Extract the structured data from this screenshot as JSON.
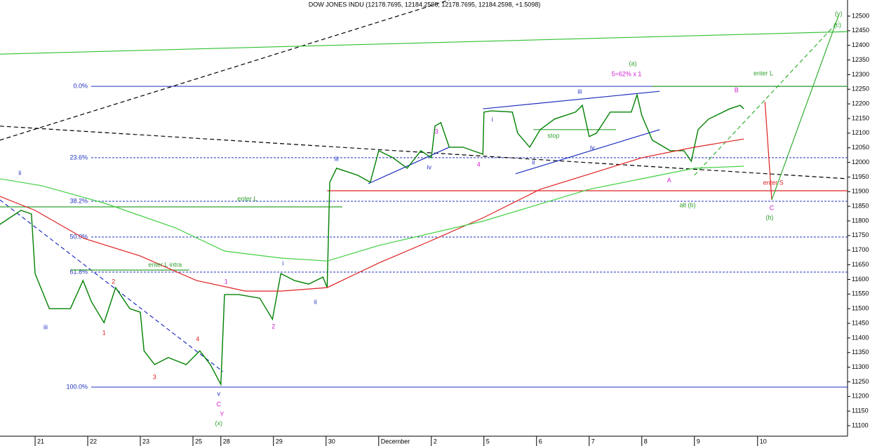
{
  "chart_data": {
    "type": "line",
    "title": "DOW JONES INDU (12178.7695, 12184.2598, 12178.7695, 12184.2598, +1.5098)",
    "xlim": [
      -0.667,
      15.44
    ],
    "ylim": [
      11069,
      12555
    ],
    "xticks": [
      {
        "value": 0,
        "label": "21"
      },
      {
        "value": 1,
        "label": "22"
      },
      {
        "value": 2,
        "label": "23"
      },
      {
        "value": 3,
        "label": "25"
      },
      {
        "value": 3.53,
        "label": "28"
      },
      {
        "value": 4.53,
        "label": "29"
      },
      {
        "value": 5.53,
        "label": "30"
      },
      {
        "value": 6.53,
        "label": "December"
      },
      {
        "value": 7.53,
        "label": "2"
      },
      {
        "value": 8.53,
        "label": "5"
      },
      {
        "value": 9.53,
        "label": "6"
      },
      {
        "value": 10.53,
        "label": "7"
      },
      {
        "value": 11.53,
        "label": "8"
      },
      {
        "value": 12.53,
        "label": "9"
      },
      {
        "value": 13.73,
        "label": "10"
      }
    ],
    "yticks": [
      11100,
      11150,
      11200,
      11250,
      11300,
      11350,
      11400,
      11450,
      11500,
      11550,
      11600,
      11650,
      11700,
      11750,
      11800,
      11850,
      11900,
      11950,
      12000,
      12050,
      12100,
      12150,
      12200,
      12250,
      12300,
      12350,
      12400,
      12450,
      12500
    ],
    "series": [
      {
        "color": "#008000",
        "x": [
          -0.67,
          -0.27,
          -0.07,
          0,
          0.27,
          0.67,
          0.91,
          1.07,
          1.31,
          1.53,
          1.8,
          2,
          2.07,
          2.27,
          2.53,
          2.87,
          3.13,
          3.33,
          3.53,
          3.6,
          3.87,
          4.27,
          4.51,
          4.67,
          4.93,
          5.2,
          5.47,
          5.55,
          5.6,
          5.73,
          6.13,
          6.37,
          6.53,
          6.8,
          7.07,
          7.33,
          7.53,
          7.6,
          7.71,
          7.87,
          8.13,
          8.51,
          8.53,
          8.67,
          9.07,
          9.17,
          9.4,
          9.6,
          9.87,
          10.27,
          10.4,
          10.53,
          10.67,
          10.93,
          11.33,
          11.44,
          11.53,
          11.73,
          12.07,
          12.33,
          12.47,
          12.6,
          12.8,
          13.2,
          13.4,
          13.47
        ],
        "values": [
          11788,
          11836,
          11824,
          11620,
          11500,
          11500,
          11596,
          11524,
          11452,
          11572,
          11500,
          11488,
          11356,
          11309,
          11333,
          11309,
          11356,
          11309,
          11241,
          11548,
          11548,
          11536,
          11464,
          11620,
          11596,
          11584,
          11608,
          11572,
          11932,
          11980,
          11956,
          11932,
          12040,
          12016,
          11980,
          12040,
          12016,
          12124,
          12136,
          12052,
          12052,
          12028,
          12172,
          12176,
          12172,
          12100,
          12052,
          12112,
          12148,
          12172,
          12195,
          12088,
          12100,
          12172,
          12172,
          12231,
          12160,
          12076,
          12040,
          12040,
          12004,
          12112,
          12148,
          12183,
          12195,
          12183
        ]
      },
      {
        "color": "#e02020",
        "x": [
          -0.67,
          0,
          0.93,
          2,
          3.07,
          4,
          4.67,
          5.55,
          6.53,
          7.47,
          8.53,
          9.6,
          10.53,
          11.53,
          12.53,
          13.47
        ],
        "values": [
          11884,
          11836,
          11740,
          11680,
          11596,
          11560,
          11560,
          11572,
          11656,
          11728,
          11812,
          11908,
          11960,
          12016,
          12052,
          12080
        ]
      },
      {
        "color": "#40d040",
        "x": [
          -0.67,
          0.13,
          1.33,
          2.67,
          3.6,
          4.67,
          5.55,
          6.53,
          8.53,
          10.53,
          11.53,
          12.53,
          13.47
        ],
        "values": [
          11944,
          11920,
          11860,
          11776,
          11697,
          11673,
          11663,
          11716,
          11800,
          11908,
          11944,
          11980,
          11987
        ]
      }
    ],
    "trendlines": [
      {
        "color": "#000000",
        "dash": true,
        "x": [
          -0.67,
          7.87
        ],
        "values": [
          12076,
          12555
        ]
      },
      {
        "color": "#000000",
        "dash": true,
        "x": [
          -0.67,
          15.44
        ],
        "values": [
          12124,
          11944
        ]
      },
      {
        "color": "#30c030",
        "dash": false,
        "x": [
          -0.67,
          15.44
        ],
        "values": [
          12370,
          12447
        ]
      },
      {
        "color": "#2030c0",
        "dash": true,
        "x": [
          -0.67,
          3.57
        ],
        "values": [
          11872,
          11285
        ]
      },
      {
        "color": "#2030c0",
        "dash": false,
        "x": [
          6.33,
          7.87
        ],
        "values": [
          11927,
          12052
        ]
      },
      {
        "color": "#2030c0",
        "dash": false,
        "x": [
          8.51,
          11.87
        ],
        "values": [
          12183,
          12243
        ]
      },
      {
        "color": "#2030c0",
        "dash": false,
        "x": [
          9.13,
          11.87
        ],
        "values": [
          11961,
          12112
        ]
      },
      {
        "color": "#e02020",
        "dash": false,
        "x": [
          5.55,
          15.44
        ],
        "values": [
          11903,
          11903
        ]
      },
      {
        "color": "#30a030",
        "dash": false,
        "x": [
          9.47,
          11.04
        ],
        "values": [
          12112,
          12112
        ]
      },
      {
        "color": "#30a030",
        "dash": false,
        "x": [
          -0.67,
          5.84
        ],
        "values": [
          11848,
          11848
        ]
      },
      {
        "color": "#30a030",
        "dash": false,
        "x": [
          0.67,
          2.93
        ],
        "values": [
          11632,
          11632
        ]
      },
      {
        "color": "#30a030",
        "dash": false,
        "x": [
          11.73,
          15.44
        ],
        "values": [
          12260,
          12260
        ]
      },
      {
        "color": "#e02020",
        "dash": false,
        "x": [
          13.87,
          14
        ],
        "values": [
          12207,
          11872
        ]
      },
      {
        "color": "#30b030",
        "dash": false,
        "x": [
          14,
          15.27
        ],
        "values": [
          11872,
          12502
        ]
      },
      {
        "color": "#30b030",
        "dash": true,
        "x": [
          12.53,
          15.27
        ],
        "values": [
          11956,
          12483
        ]
      }
    ],
    "fib_levels": [
      {
        "label": "0.0%",
        "value": 12260,
        "dash": false
      },
      {
        "label": "23.6%",
        "value": 12016,
        "dash": true
      },
      {
        "label": "38.2%",
        "value": 11867,
        "dash": true
      },
      {
        "label": "50.0%",
        "value": 11745,
        "dash": true
      },
      {
        "label": "61.8%",
        "value": 11625,
        "dash": true
      },
      {
        "label": "100.0%",
        "value": 11232,
        "dash": false
      }
    ],
    "fib_color": "#2030c0",
    "annotations": [
      {
        "text": "ii",
        "x": -0.29,
        "y": 11963,
        "color": "#2030c0"
      },
      {
        "text": "iii",
        "x": 0.2,
        "y": 11436,
        "color": "#2030c0"
      },
      {
        "text": "1",
        "x": 1.31,
        "y": 11416,
        "color": "#e02020"
      },
      {
        "text": "2",
        "x": 1.49,
        "y": 11591,
        "color": "#e02020"
      },
      {
        "text": "3",
        "x": 2.27,
        "y": 11265,
        "color": "#e02020"
      },
      {
        "text": "4",
        "x": 3.09,
        "y": 11395,
        "color": "#e02020"
      },
      {
        "text": "v",
        "x": 3.49,
        "y": 11208,
        "color": "#2030c0"
      },
      {
        "text": "C",
        "x": 3.49,
        "y": 11172,
        "color": "#d020d0"
      },
      {
        "text": "Y",
        "x": 3.55,
        "y": 11138,
        "color": "#d020d0"
      },
      {
        "text": "(x)",
        "x": 3.49,
        "y": 11107,
        "color": "#30a030"
      },
      {
        "text": "1",
        "x": 3.63,
        "y": 11591,
        "color": "#d020d0"
      },
      {
        "text": "2",
        "x": 4.53,
        "y": 11438,
        "color": "#d020d0"
      },
      {
        "text": "i",
        "x": 4.71,
        "y": 11654,
        "color": "#2030c0"
      },
      {
        "text": "ii",
        "x": 5.33,
        "y": 11522,
        "color": "#2030c0"
      },
      {
        "text": "iii",
        "x": 5.73,
        "y": 12011,
        "color": "#2030c0"
      },
      {
        "text": "3",
        "x": 7.63,
        "y": 12104,
        "color": "#d020d0"
      },
      {
        "text": "iv",
        "x": 7.49,
        "y": 11982,
        "color": "#2030c0"
      },
      {
        "text": "4",
        "x": 8.43,
        "y": 11992,
        "color": "#d020d0"
      },
      {
        "text": "i",
        "x": 8.69,
        "y": 12145,
        "color": "#2030c0"
      },
      {
        "text": "ii",
        "x": 9.47,
        "y": 11999,
        "color": "#2030c0"
      },
      {
        "text": "iii",
        "x": 10.35,
        "y": 12241,
        "color": "#2030c0"
      },
      {
        "text": "iv",
        "x": 10.59,
        "y": 12049,
        "color": "#2030c0"
      },
      {
        "text": "(a)",
        "x": 11.36,
        "y": 12337,
        "color": "#30a030"
      },
      {
        "text": "5=62% x 1",
        "x": 11.24,
        "y": 12301,
        "color": "#d020d0"
      },
      {
        "text": "A",
        "x": 12.05,
        "y": 11937,
        "color": "#d020d0"
      },
      {
        "text": "alt (b)",
        "x": 12.4,
        "y": 11853,
        "color": "#30a030"
      },
      {
        "text": "B",
        "x": 13.33,
        "y": 12246,
        "color": "#d020d0"
      },
      {
        "text": "C",
        "x": 14,
        "y": 11843,
        "color": "#d020d0"
      },
      {
        "text": "(b)",
        "x": 13.96,
        "y": 11810,
        "color": "#30a030"
      },
      {
        "text": "(y)",
        "x": 15.27,
        "y": 12507,
        "color": "#30a030"
      },
      {
        "text": "(c)",
        "x": 15.25,
        "y": 12469,
        "color": "#30a030"
      },
      {
        "text": "stop",
        "x": 9.85,
        "y": 12090,
        "color": "#30a030"
      },
      {
        "text": "enter L",
        "x": 4.03,
        "y": 11874,
        "color": "#30a030"
      },
      {
        "text": "enter L intra",
        "x": 2.47,
        "y": 11649,
        "color": "#30a030"
      },
      {
        "text": "enter L",
        "x": 13.84,
        "y": 12303,
        "color": "#30a030"
      },
      {
        "text": "enter S",
        "x": 14.03,
        "y": 11929,
        "color": "#e02020"
      }
    ]
  }
}
